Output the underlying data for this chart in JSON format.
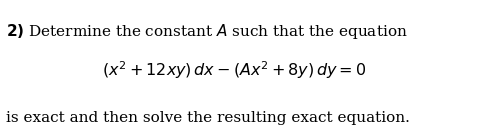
{
  "background_color": "#ffffff",
  "line1": "\\textbf{2)} Determine the constant $A$ such that the equation",
  "line2": "$(x^2 + 12xy)\\,dx - (Ax^2 + 8y)\\,dy = 0$",
  "line3": "is exact and then solve the resulting exact equation.",
  "fig_width": 4.94,
  "fig_height": 1.28,
  "dpi": 100
}
